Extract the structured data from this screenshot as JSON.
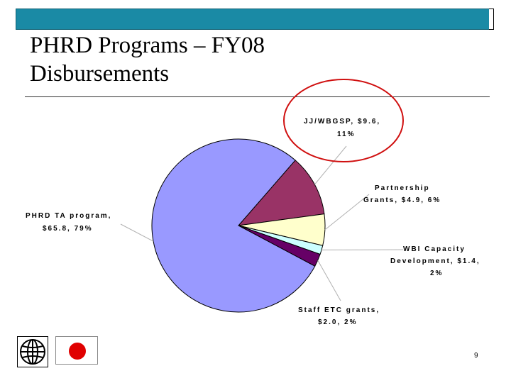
{
  "slide": {
    "title_line1": "PHRD Programs – FY08",
    "title_line2": "Disbursements",
    "page_number": "9"
  },
  "colors": {
    "top_bar": "#1a8aa5",
    "highlight_circle": "#d01010",
    "flag_red": "#e00000"
  },
  "chart_data": {
    "type": "pie",
    "title": "",
    "slices": [
      {
        "label_line1": "PHRD TA program,",
        "label_line2": "$65.8, 79%",
        "value": 65.8,
        "percent": 79,
        "color": "#9999ff"
      },
      {
        "label_line1": "JJ/WBGSP, $9.6,",
        "label_line2": "11%",
        "value": 9.6,
        "percent": 11,
        "color": "#993366"
      },
      {
        "label_line1": "Partnership",
        "label_line2": "Grants, $4.9, 6%",
        "value": 4.9,
        "percent": 6,
        "color": "#ffffcc"
      },
      {
        "label_line1": "WBI Capacity",
        "label_line2": "Development, $1.4,",
        "label_line3": "2%",
        "value": 1.4,
        "percent": 2,
        "color": "#ccffff"
      },
      {
        "label_line1": "Staff ETC grants,",
        "label_line2": "$2.0, 2%",
        "value": 2.0,
        "percent": 2,
        "color": "#660066"
      }
    ],
    "highlighted_slice": "JJ/WBGSP"
  }
}
